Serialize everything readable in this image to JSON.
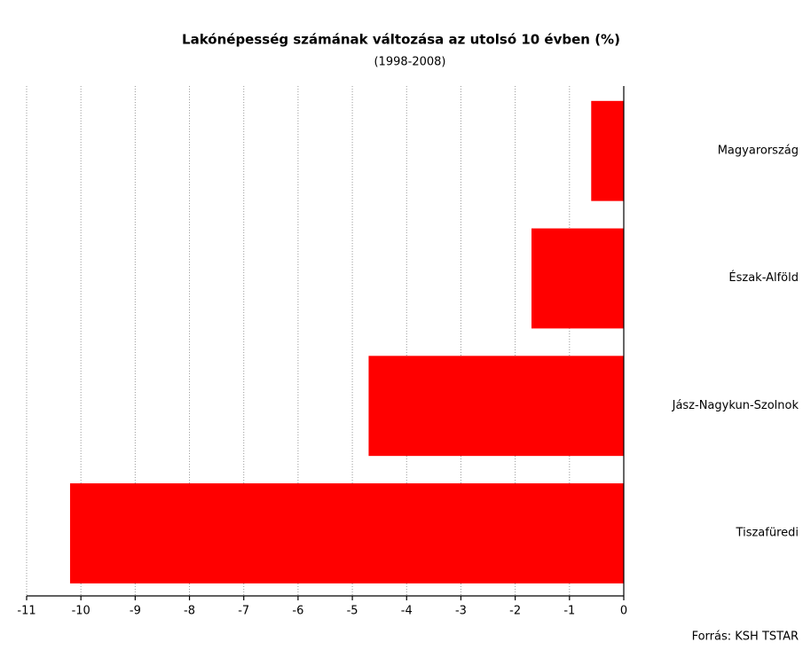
{
  "chart_data": {
    "type": "bar",
    "orientation": "horizontal",
    "title": "Lakónépesség számának változása az utolsó 10 évben (%)",
    "subtitle": "(1998-2008)",
    "source": "Forrás: KSH TSTAR",
    "categories": [
      "Magyarország",
      "Észak-Alföld",
      "Jász-Nagykun-Szolnok",
      "Tiszafüredi"
    ],
    "values": [
      -0.6,
      -1.7,
      -4.7,
      -10.2
    ],
    "color": "#ff0000",
    "xlim": [
      -11,
      0
    ],
    "xticks": [
      -11,
      -10,
      -9,
      -8,
      -7,
      -6,
      -5,
      -4,
      -3,
      -2,
      -1,
      0
    ],
    "grid": true
  }
}
